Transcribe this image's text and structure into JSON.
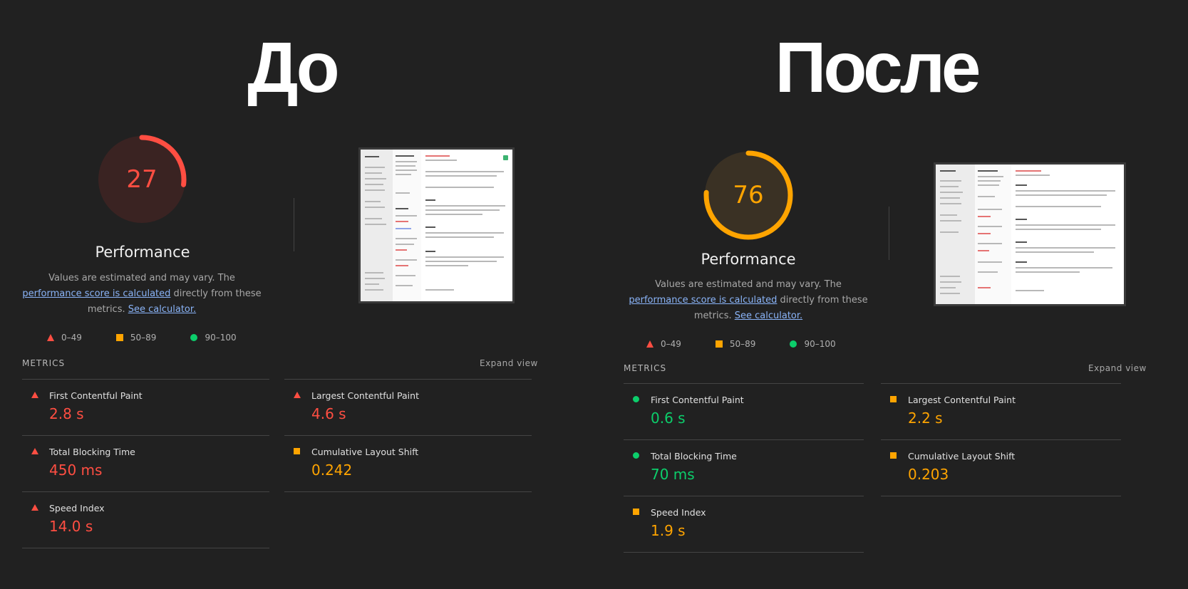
{
  "colors": {
    "fail": "#ff4e42",
    "average": "#ffa400",
    "pass": "#0cce6b",
    "background": "#212121"
  },
  "panels": [
    {
      "heading": "До",
      "score": 27,
      "score_fraction": 0.27,
      "score_rating": "fail",
      "title": "Performance",
      "desc_prefix": "Values are estimated and may vary. The ",
      "desc_link": "performance score is calculated",
      "desc_middle": " directly from these metrics. ",
      "desc_calc": "See calculator.",
      "legend": [
        {
          "icon": "triangle-icon",
          "label": "0–49"
        },
        {
          "icon": "square-icon",
          "label": "50–89"
        },
        {
          "icon": "circle-icon",
          "label": "90–100"
        }
      ],
      "metrics_label": "METRICS",
      "expand_label": "Expand view",
      "metrics": [
        {
          "name": "First Contentful Paint",
          "value": "2.8 s",
          "rating": "fail"
        },
        {
          "name": "Largest Contentful Paint",
          "value": "4.6 s",
          "rating": "fail"
        },
        {
          "name": "Total Blocking Time",
          "value": "450 ms",
          "rating": "fail"
        },
        {
          "name": "Cumulative Layout Shift",
          "value": "0.242",
          "rating": "average"
        },
        {
          "name": "Speed Index",
          "value": "14.0 s",
          "rating": "fail"
        }
      ]
    },
    {
      "heading": "После",
      "score": 76,
      "score_fraction": 0.76,
      "score_rating": "average",
      "title": "Performance",
      "desc_prefix": "Values are estimated and may vary. The ",
      "desc_link": "performance score is calculated",
      "desc_middle": " directly from these metrics. ",
      "desc_calc": "See calculator.",
      "legend": [
        {
          "icon": "triangle-icon",
          "label": "0–49"
        },
        {
          "icon": "square-icon",
          "label": "50–89"
        },
        {
          "icon": "circle-icon",
          "label": "90–100"
        }
      ],
      "metrics_label": "METRICS",
      "expand_label": "Expand view",
      "metrics": [
        {
          "name": "First Contentful Paint",
          "value": "0.6 s",
          "rating": "pass"
        },
        {
          "name": "Largest Contentful Paint",
          "value": "2.2 s",
          "rating": "average"
        },
        {
          "name": "Total Blocking Time",
          "value": "70 ms",
          "rating": "pass"
        },
        {
          "name": "Cumulative Layout Shift",
          "value": "0.203",
          "rating": "average"
        },
        {
          "name": "Speed Index",
          "value": "1.9 s",
          "rating": "average"
        }
      ]
    }
  ]
}
